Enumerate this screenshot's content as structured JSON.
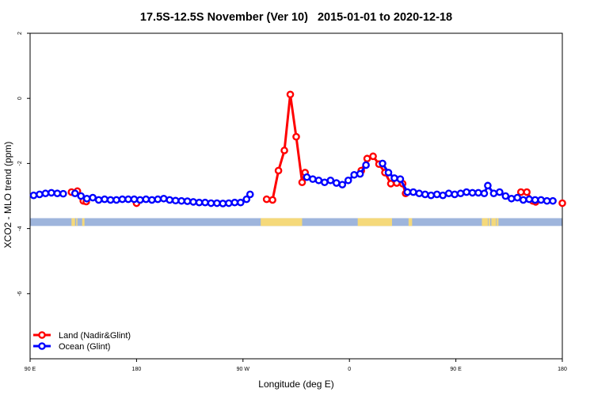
{
  "chart_data": {
    "type": "line",
    "title": "17.5S-12.5S November (Ver 10)   2015-01-01 to 2020-12-18",
    "xlabel": "Longitude (deg E)",
    "ylabel": "XCO2 - MLO trend (ppm)",
    "x_ticks": [
      {
        "value": 90,
        "label": "90 E"
      },
      {
        "value": 180,
        "label": "180"
      },
      {
        "value": 270,
        "label": "90 W"
      },
      {
        "value": 360,
        "label": "0"
      },
      {
        "value": 450,
        "label": "90 E"
      },
      {
        "value": 540,
        "label": "180"
      }
    ],
    "y_ticks": [
      {
        "value": 2,
        "label": "2"
      },
      {
        "value": 0,
        "label": "0"
      },
      {
        "value": -2,
        "label": "-2"
      },
      {
        "value": -4,
        "label": "-4"
      },
      {
        "value": -6,
        "label": "-6"
      }
    ],
    "xlim": [
      90,
      540
    ],
    "ylim": [
      -8,
      2
    ],
    "legend_position": "bottom-left",
    "series": [
      {
        "name": "Land (Nadir&Glint)",
        "color": "#ff0000",
        "points": [
          {
            "x": 125,
            "y": -2.88
          },
          {
            "x": 130,
            "y": -2.85
          },
          {
            "x": 135,
            "y": -3.15
          },
          {
            "x": 137.5,
            "y": -3.17
          },
          {
            "x": 180,
            "y": -3.22
          },
          {
            "x": 290,
            "y": -3.1
          },
          {
            "x": 295,
            "y": -3.12
          },
          {
            "x": 300,
            "y": -2.22
          },
          {
            "x": 305,
            "y": -1.6
          },
          {
            "x": 310,
            "y": 0.12
          },
          {
            "x": 315,
            "y": -1.18
          },
          {
            "x": 320,
            "y": -2.58
          },
          {
            "x": 322.5,
            "y": -2.28
          },
          {
            "x": 370,
            "y": -2.22
          },
          {
            "x": 375,
            "y": -1.85
          },
          {
            "x": 380,
            "y": -1.78
          },
          {
            "x": 385,
            "y": -2.02
          },
          {
            "x": 390,
            "y": -2.28
          },
          {
            "x": 395,
            "y": -2.62
          },
          {
            "x": 400,
            "y": -2.6
          },
          {
            "x": 405,
            "y": -2.62
          },
          {
            "x": 407.5,
            "y": -2.92
          },
          {
            "x": 505,
            "y": -2.88
          },
          {
            "x": 510,
            "y": -2.88
          },
          {
            "x": 515,
            "y": -3.15
          },
          {
            "x": 517.5,
            "y": -3.18
          },
          {
            "x": 540,
            "y": -3.22
          }
        ]
      },
      {
        "name": "Ocean (Glint)",
        "color": "#0000ff",
        "points": [
          {
            "x": 93,
            "y": -2.98
          },
          {
            "x": 98,
            "y": -2.95
          },
          {
            "x": 103,
            "y": -2.92
          },
          {
            "x": 108,
            "y": -2.9
          },
          {
            "x": 113,
            "y": -2.92
          },
          {
            "x": 118,
            "y": -2.93
          },
          {
            "x": 128,
            "y": -2.92
          },
          {
            "x": 133,
            "y": -3.0
          },
          {
            "x": 138,
            "y": -3.08
          },
          {
            "x": 143,
            "y": -3.05
          },
          {
            "x": 148,
            "y": -3.12
          },
          {
            "x": 153,
            "y": -3.1
          },
          {
            "x": 158,
            "y": -3.12
          },
          {
            "x": 163,
            "y": -3.12
          },
          {
            "x": 168,
            "y": -3.1
          },
          {
            "x": 173,
            "y": -3.1
          },
          {
            "x": 178,
            "y": -3.1
          },
          {
            "x": 183,
            "y": -3.12
          },
          {
            "x": 188,
            "y": -3.1
          },
          {
            "x": 193,
            "y": -3.12
          },
          {
            "x": 198,
            "y": -3.1
          },
          {
            "x": 203,
            "y": -3.08
          },
          {
            "x": 208,
            "y": -3.12
          },
          {
            "x": 213,
            "y": -3.14
          },
          {
            "x": 218,
            "y": -3.15
          },
          {
            "x": 223,
            "y": -3.16
          },
          {
            "x": 228,
            "y": -3.18
          },
          {
            "x": 233,
            "y": -3.2
          },
          {
            "x": 238,
            "y": -3.2
          },
          {
            "x": 243,
            "y": -3.22
          },
          {
            "x": 248,
            "y": -3.22
          },
          {
            "x": 253,
            "y": -3.23
          },
          {
            "x": 258,
            "y": -3.22
          },
          {
            "x": 263,
            "y": -3.2
          },
          {
            "x": 268,
            "y": -3.2
          },
          {
            "x": 273,
            "y": -3.1
          },
          {
            "x": 276,
            "y": -2.95
          },
          {
            "x": 324,
            "y": -2.42
          },
          {
            "x": 329,
            "y": -2.48
          },
          {
            "x": 334,
            "y": -2.52
          },
          {
            "x": 339,
            "y": -2.58
          },
          {
            "x": 344,
            "y": -2.52
          },
          {
            "x": 349,
            "y": -2.6
          },
          {
            "x": 354,
            "y": -2.65
          },
          {
            "x": 359,
            "y": -2.52
          },
          {
            "x": 364,
            "y": -2.35
          },
          {
            "x": 369,
            "y": -2.32
          },
          {
            "x": 374,
            "y": -2.05
          },
          {
            "x": 388,
            "y": -2.0
          },
          {
            "x": 393,
            "y": -2.28
          },
          {
            "x": 398,
            "y": -2.45
          },
          {
            "x": 403,
            "y": -2.48
          },
          {
            "x": 409,
            "y": -2.88
          },
          {
            "x": 414,
            "y": -2.88
          },
          {
            "x": 419,
            "y": -2.92
          },
          {
            "x": 424,
            "y": -2.95
          },
          {
            "x": 429,
            "y": -2.98
          },
          {
            "x": 434,
            "y": -2.95
          },
          {
            "x": 439,
            "y": -2.98
          },
          {
            "x": 444,
            "y": -2.92
          },
          {
            "x": 449,
            "y": -2.95
          },
          {
            "x": 454,
            "y": -2.92
          },
          {
            "x": 459,
            "y": -2.88
          },
          {
            "x": 464,
            "y": -2.9
          },
          {
            "x": 469,
            "y": -2.9
          },
          {
            "x": 474,
            "y": -2.92
          },
          {
            "x": 477,
            "y": -2.68
          },
          {
            "x": 482,
            "y": -2.92
          },
          {
            "x": 487,
            "y": -2.88
          },
          {
            "x": 492,
            "y": -3.0
          },
          {
            "x": 497,
            "y": -3.08
          },
          {
            "x": 502,
            "y": -3.05
          },
          {
            "x": 507,
            "y": -3.12
          },
          {
            "x": 512,
            "y": -3.1
          },
          {
            "x": 517,
            "y": -3.12
          },
          {
            "x": 522,
            "y": -3.12
          },
          {
            "x": 527,
            "y": -3.15
          },
          {
            "x": 532,
            "y": -3.15
          }
        ]
      }
    ],
    "surface_band": {
      "y_range": [
        -3.92,
        -3.68
      ],
      "ocean_color": "#9eb5dc",
      "land_color": "#f5d97a",
      "land_segments": [
        [
          125,
          128
        ],
        [
          129,
          130
        ],
        [
          134,
          136
        ],
        [
          285,
          320
        ],
        [
          367,
          396
        ],
        [
          410,
          413
        ],
        [
          472,
          477
        ],
        [
          477.5,
          479
        ],
        [
          480,
          484
        ],
        [
          484.5,
          486
        ]
      ]
    }
  }
}
